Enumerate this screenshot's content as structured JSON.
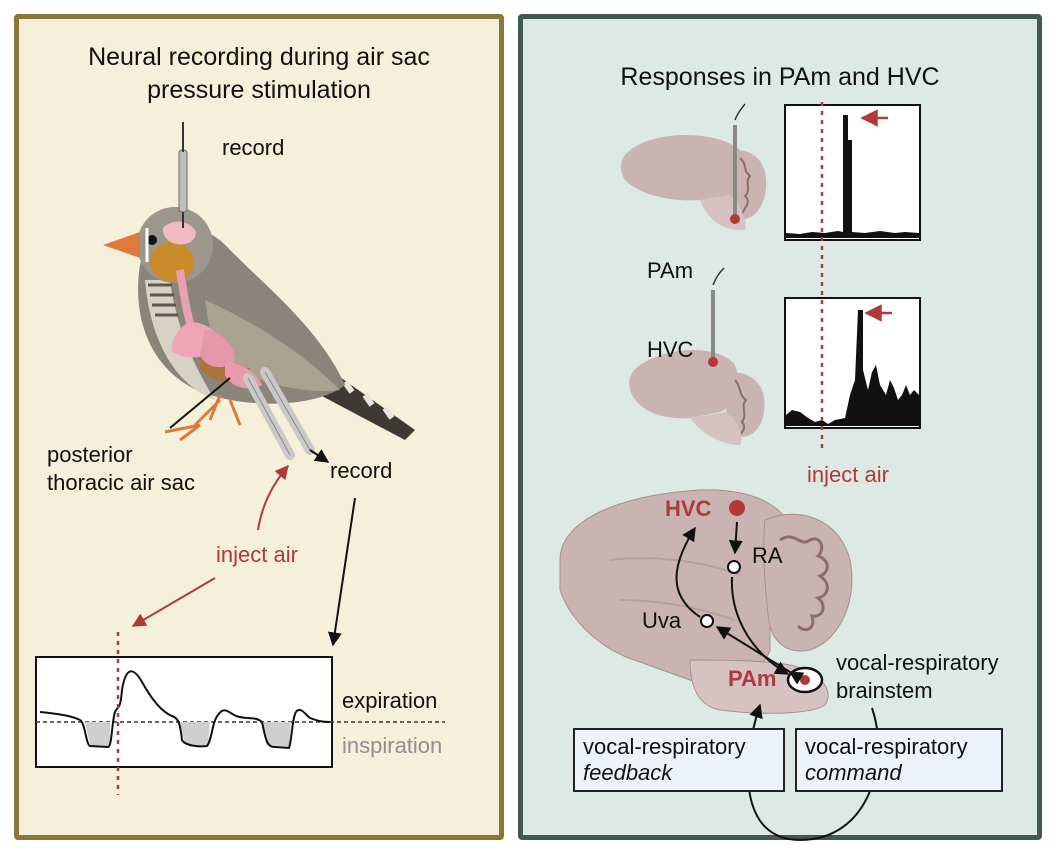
{
  "left_panel": {
    "title_line1": "Neural recording during air sac",
    "title_line2": "pressure stimulation",
    "label_record_top": "record",
    "label_record_mid": "record",
    "label_air_sac_line1": "posterior",
    "label_air_sac_line2": "thoracic air sac",
    "label_inject_air": "inject air",
    "label_expiration": "expiration",
    "label_inspiration": "inspiration"
  },
  "right_panel": {
    "title": "Responses in PAm and HVC",
    "label_pam_top": "PAm",
    "label_hvc_top": "HVC",
    "label_inject_air": "inject air",
    "circuit": {
      "hvc": "HVC",
      "ra": "RA",
      "uva": "Uva",
      "pam": "PAm",
      "brainstem_line1": "vocal-respiratory",
      "brainstem_line2": "brainstem"
    },
    "feedback_box": {
      "line1": "vocal-respiratory",
      "line2": "feedback"
    },
    "command_box": {
      "line1": "vocal-respiratory",
      "line2": "command"
    }
  },
  "colors": {
    "left_bg": "#f4f0d9",
    "left_border": "#8b7636",
    "right_bg": "#dde9e5",
    "right_border": "#3f5a52",
    "accent_red": "#b03a3a",
    "brain_fill": "#c9b3b3"
  }
}
